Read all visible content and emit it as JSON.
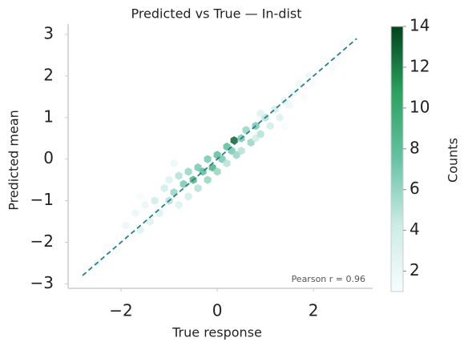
{
  "chart_data": {
    "type": "hexbin",
    "title": "Predicted vs True — In-dist",
    "x_label": "True response",
    "y_label": "Predicted mean",
    "annotation": "Pearson r = 0.96",
    "xlim": [
      -3.1,
      3.23
    ],
    "ylim": [
      -3.05,
      3.25
    ],
    "xticks": [
      {
        "value": -2,
        "label": "−2"
      },
      0,
      2
    ],
    "yticks": [
      {
        "value": -3,
        "label": "−3"
      },
      {
        "value": -2,
        "label": "−2"
      },
      {
        "value": -1,
        "label": "−1"
      },
      0,
      1,
      2,
      3
    ],
    "colorbar_label": "Counts",
    "clim": [
      1,
      14
    ],
    "colorbar_ticks": [
      2,
      4,
      6,
      8,
      10,
      12,
      14
    ],
    "colormap": [
      "#f7fcfd",
      "#ccece6",
      "#66c2a4",
      "#2ca25f",
      "#00441b"
    ],
    "reference_line": {
      "x": [
        -2.8,
        2.9
      ],
      "y": [
        -2.8,
        2.9
      ],
      "color": "#2a7f8f"
    },
    "x": [
      -2.7,
      -2.5,
      -2.3,
      -2.1,
      -1.9,
      -1.8,
      -1.7,
      -1.6,
      -1.5,
      -1.4,
      -1.3,
      -1.2,
      -1.1,
      -1.0,
      -1.0,
      -0.9,
      -0.8,
      -0.8,
      -0.7,
      -0.6,
      -0.6,
      -0.5,
      -0.4,
      -0.4,
      -0.3,
      -0.2,
      -0.2,
      -0.1,
      0.0,
      0.0,
      0.1,
      0.2,
      0.2,
      0.3,
      0.35,
      0.4,
      0.5,
      0.5,
      0.6,
      0.7,
      0.8,
      0.8,
      0.9,
      1.0,
      1.1,
      1.2,
      1.3,
      1.4,
      1.5,
      1.6,
      1.7,
      1.8,
      1.9,
      2.0,
      2.1,
      2.2,
      2.4,
      2.6,
      2.8,
      -0.9,
      0.9,
      -1.6,
      1.4
    ],
    "y": [
      -2.6,
      -2.5,
      -2.1,
      -2.2,
      -1.6,
      -1.9,
      -1.3,
      -1.7,
      -1.1,
      -1.5,
      -1.0,
      -1.3,
      -0.7,
      -1.0,
      -0.5,
      -0.8,
      -0.4,
      -1.1,
      -0.6,
      -0.3,
      -0.9,
      -0.5,
      -0.2,
      -0.7,
      -0.3,
      0.0,
      -0.5,
      -0.2,
      0.1,
      -0.3,
      0.0,
      0.3,
      -0.1,
      0.2,
      0.45,
      0.1,
      0.5,
      0.2,
      0.7,
      0.4,
      0.8,
      0.5,
      0.6,
      1.0,
      0.8,
      1.2,
      1.0,
      1.4,
      1.3,
      1.6,
      1.8,
      1.5,
      2.0,
      1.8,
      2.2,
      2.4,
      2.2,
      2.8,
      2.9,
      -0.1,
      1.1,
      -0.9,
      0.8
    ],
    "values": [
      1,
      2,
      1,
      1,
      2,
      1,
      2,
      3,
      2,
      3,
      4,
      3,
      4,
      5,
      3,
      6,
      5,
      3,
      7,
      6,
      4,
      9,
      7,
      5,
      8,
      7,
      6,
      9,
      8,
      6,
      7,
      8,
      5,
      7,
      13,
      6,
      7,
      5,
      6,
      6,
      7,
      4,
      5,
      5,
      4,
      4,
      3,
      3,
      2,
      2,
      2,
      1,
      2,
      1,
      1,
      1,
      1,
      1,
      1,
      2,
      3,
      1,
      1
    ]
  }
}
